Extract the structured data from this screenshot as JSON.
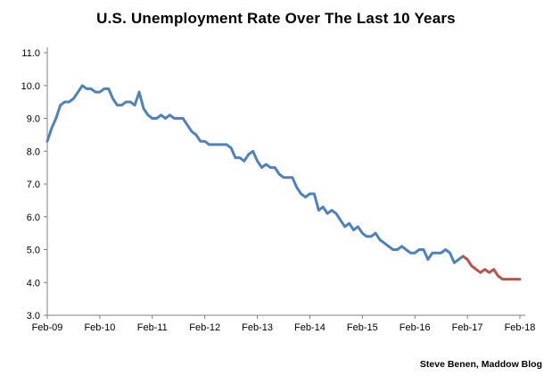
{
  "title": "U.S. Unemployment Rate Over The Last 10 Years",
  "credit": "Steve Benen, Maddow Blog",
  "chart_data": {
    "type": "line",
    "title": "U.S. Unemployment Rate Over The Last 10 Years",
    "xlabel": "",
    "ylabel": "",
    "ylim": [
      3.0,
      11.0
    ],
    "grid": false,
    "legend": "none",
    "x_unit": "month",
    "x_start_label": "Feb-09",
    "x_tick_labels": [
      "Feb-09",
      "Feb-10",
      "Feb-11",
      "Feb-12",
      "Feb-13",
      "Feb-14",
      "Feb-15",
      "Feb-16",
      "Feb-17",
      "Feb-18"
    ],
    "y_tick_labels": [
      "3.0",
      "4.0",
      "5.0",
      "6.0",
      "7.0",
      "8.0",
      "9.0",
      "10.0",
      "11.0"
    ],
    "y_ticks": [
      3,
      4,
      5,
      6,
      7,
      8,
      9,
      10,
      11
    ],
    "split_index": 95,
    "colors": {
      "pre_split": "#4f81bd",
      "post_split": "#c0504d",
      "axis": "#808080"
    },
    "series": [
      {
        "name": "unemployment-rate-monthly",
        "values": [
          8.3,
          8.7,
          9.0,
          9.4,
          9.5,
          9.5,
          9.6,
          9.8,
          10.0,
          9.9,
          9.9,
          9.8,
          9.8,
          9.9,
          9.9,
          9.6,
          9.4,
          9.4,
          9.5,
          9.5,
          9.4,
          9.8,
          9.3,
          9.1,
          9.0,
          9.0,
          9.1,
          9.0,
          9.1,
          9.0,
          9.0,
          9.0,
          8.8,
          8.6,
          8.5,
          8.3,
          8.3,
          8.2,
          8.2,
          8.2,
          8.2,
          8.2,
          8.1,
          7.8,
          7.8,
          7.7,
          7.9,
          8.0,
          7.7,
          7.5,
          7.6,
          7.5,
          7.5,
          7.3,
          7.2,
          7.2,
          7.2,
          6.9,
          6.7,
          6.6,
          6.7,
          6.7,
          6.2,
          6.3,
          6.1,
          6.2,
          6.1,
          5.9,
          5.7,
          5.8,
          5.6,
          5.7,
          5.5,
          5.4,
          5.4,
          5.5,
          5.3,
          5.2,
          5.1,
          5.0,
          5.0,
          5.1,
          5.0,
          4.9,
          4.9,
          5.0,
          5.0,
          4.7,
          4.9,
          4.9,
          4.9,
          5.0,
          4.9,
          4.6,
          4.7,
          4.8,
          4.7,
          4.5,
          4.4,
          4.3,
          4.4,
          4.3,
          4.4,
          4.2,
          4.1,
          4.1,
          4.1,
          4.1,
          4.1
        ]
      }
    ]
  }
}
